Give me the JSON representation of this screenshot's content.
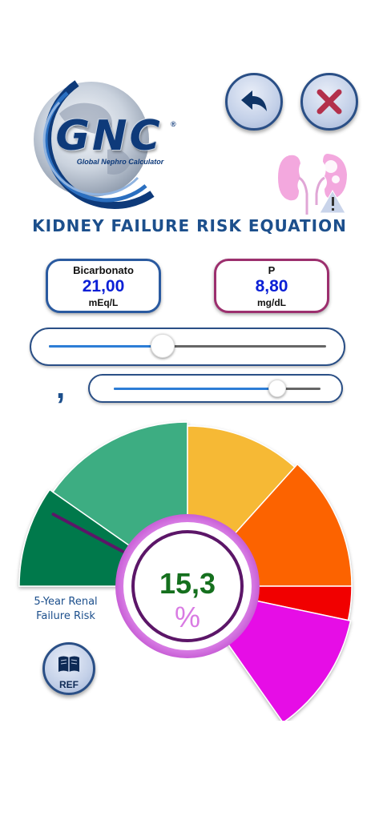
{
  "logo": {
    "wordmark": "GNC",
    "registered": "®",
    "tagline": "Global Nephro Calculator"
  },
  "header": {
    "title": "KIDNEY FAILURE RISK EQUATION"
  },
  "icons": {
    "back": "back-arrow-icon",
    "close": "close-icon",
    "kidney": "kidney-warning-icon",
    "ref": "book-icon"
  },
  "inputs": {
    "bicarbonato": {
      "label": "Bicarbonato",
      "value": "21,00",
      "unit": "mEq/L"
    },
    "p": {
      "label": "P",
      "value": "8,80",
      "unit": "mg/dL"
    }
  },
  "sliders": {
    "integer": {
      "level": 0.41
    },
    "decimal": {
      "level": 0.79
    }
  },
  "decimal_separator": ",",
  "gauge": {
    "label_line1": "5-Year Renal",
    "label_line2": "Failure Risk",
    "value": "15,3",
    "unit": "%",
    "needle_level": 0.12,
    "colors": [
      "#03794c",
      "#3cad82",
      "#f6b934",
      "#fc6400",
      "#f10000",
      "#e60fe6"
    ]
  },
  "ref_button": {
    "label": "REF"
  }
}
